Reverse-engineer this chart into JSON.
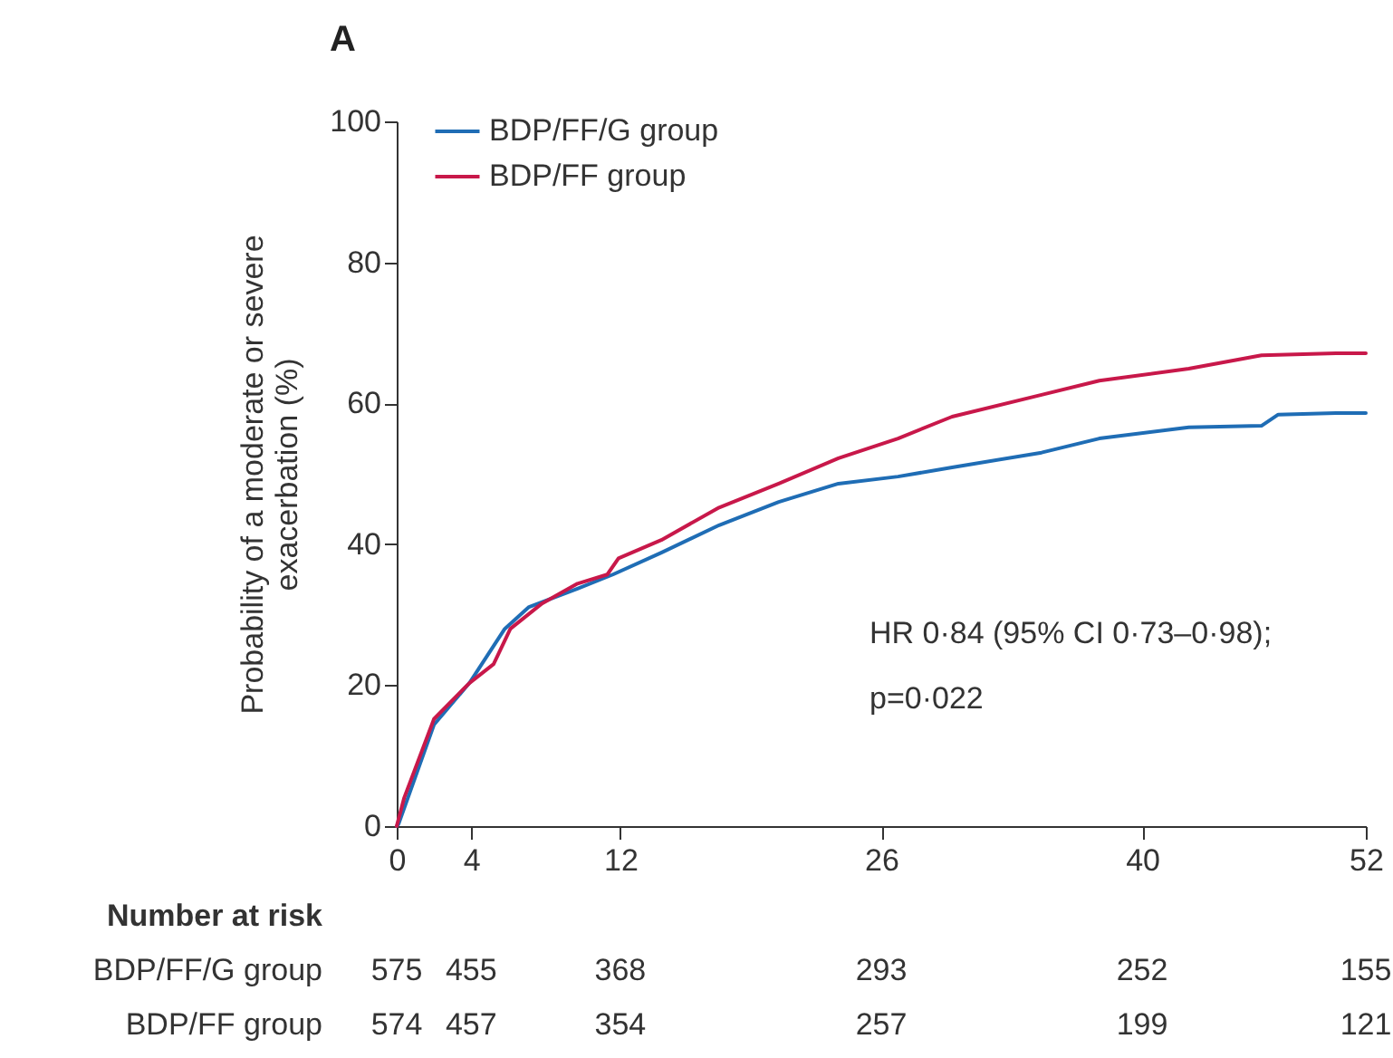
{
  "chart_data": {
    "type": "line",
    "title": "A",
    "ylabel": "Probability of a moderate or severe exacerbation (%)",
    "xlim": [
      0,
      52
    ],
    "xticks": [
      0,
      4,
      12,
      26,
      40,
      52
    ],
    "ylim": [
      0,
      100
    ],
    "yticks": [
      0,
      20,
      40,
      60,
      80,
      100
    ],
    "legend": "top left",
    "grid": false,
    "series": [
      {
        "name": "BDP/FF/G group",
        "color": "#1f6db5",
        "x": [
          0,
          0.1,
          2.0,
          3.9,
          5.8,
          7.1,
          9.7,
          11.6,
          14.2,
          17.3,
          20.5,
          23.7,
          26.9,
          29.8,
          34.6,
          37.7,
          42.5,
          46.4,
          47.3,
          50.4,
          52
        ],
        "values": [
          0,
          0.3,
          14.4,
          20.3,
          28,
          31.1,
          33.7,
          35.7,
          38.8,
          42.7,
          46,
          48.6,
          49.6,
          50.9,
          53,
          55,
          56.6,
          56.8,
          58.4,
          58.6,
          58.6
        ]
      },
      {
        "name": "BDP/FF group",
        "color": "#c8184a",
        "x": [
          0,
          0.4,
          2.0,
          3.9,
          5.2,
          6.1,
          7.8,
          9.7,
          11.3,
          11.9,
          14.2,
          17.3,
          20.5,
          23.7,
          26.9,
          29.8,
          34.6,
          37.7,
          42.5,
          46.4,
          50.4,
          52
        ],
        "values": [
          0,
          4,
          15.2,
          20.3,
          23,
          28,
          31.6,
          34.4,
          35.7,
          38,
          40.6,
          45.2,
          48.6,
          52.2,
          55,
          58.1,
          61.2,
          63.2,
          64.9,
          66.8,
          67.1,
          67.1
        ]
      }
    ],
    "annotations": [
      "HR 0·84 (95% CI 0·73–0·98);",
      "p=0·022",
      "Number at risk",
      "BDP/FF/G group",
      "575",
      "455",
      "368",
      "293",
      "252",
      "155",
      "BDP/FF group",
      "574",
      "457",
      "354",
      "257",
      "199",
      "121"
    ]
  }
}
